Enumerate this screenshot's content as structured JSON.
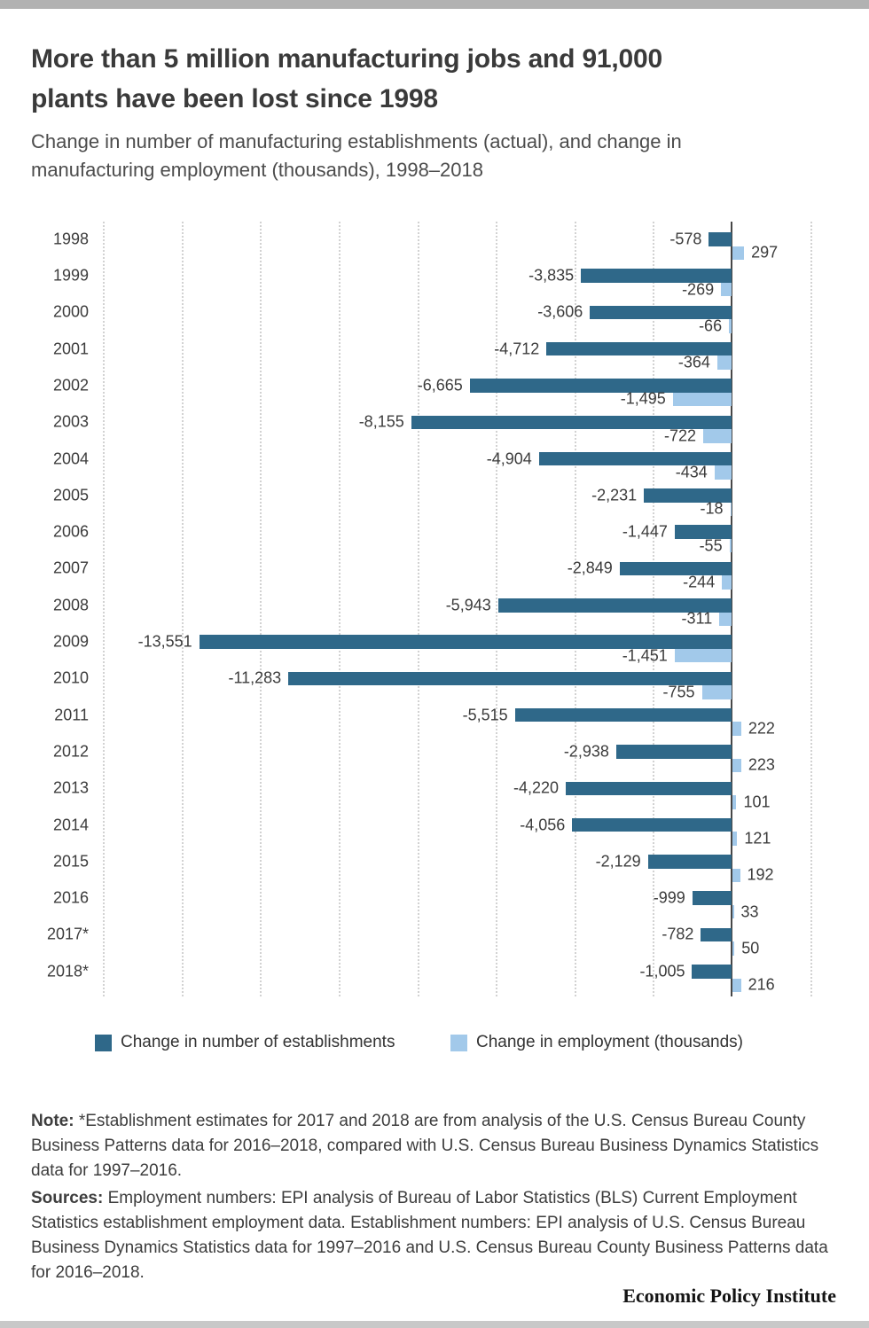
{
  "page": {
    "title": "More than 5 million manufacturing jobs and 91,000\nplants have been lost since 1998",
    "subtitle": "Change in number of manufacturing establishments (actual), and change in\nmanufacturing employment (thousands), 1998–2018",
    "note_label": "Note:",
    "note_text": "*Establishment estimates for 2017 and 2018 are from analysis of the U.S. Census Bureau County Business Patterns data for 2016–2018, compared with U.S. Census Bureau Business Dynamics Statistics data for 1997–2016.",
    "sources_label": "Sources:",
    "sources_text": "Employment numbers: EPI analysis of Bureau of Labor Statistics (BLS) Current Employment Statistics establishment employment data. Establishment numbers: EPI analysis of U.S. Census Bureau Business Dynamics Statistics data for 1997–2016 and U.S. Census Bureau County Business Patterns data for 2016–2018.",
    "brand": "Economic Policy Institute"
  },
  "colors": {
    "establishments_bar": "#2f6889",
    "employment_bar": "#a2c9ea",
    "gridline": "#d2d2d2",
    "zero_axis": "#474747",
    "top_strip": "#b2b2b2",
    "bottom_strip": "#c8c8c8"
  },
  "chart_data": {
    "type": "bar",
    "orientation": "horizontal",
    "title": "More than 5 million manufacturing jobs and 91,000 plants have been lost since 1998",
    "subtitle": "Change in number of manufacturing establishments (actual), and change in manufacturing employment (thousands), 1998–2018",
    "categories": [
      "1998",
      "1999",
      "2000",
      "2001",
      "2002",
      "2003",
      "2004",
      "2005",
      "2006",
      "2007",
      "2008",
      "2009",
      "2010",
      "2011",
      "2012",
      "2013",
      "2014",
      "2015",
      "2016",
      "2017*",
      "2018*"
    ],
    "series": [
      {
        "name": "Change in number of establishments",
        "color": "#2f6889",
        "values": [
          -578,
          -3835,
          -3606,
          -4712,
          -6665,
          -8155,
          -4904,
          -2231,
          -1447,
          -2849,
          -5943,
          -13551,
          -11283,
          -5515,
          -2938,
          -4220,
          -4056,
          -2129,
          -999,
          -782,
          -1005
        ]
      },
      {
        "name": "Change in employment (thousands)",
        "color": "#a2c9ea",
        "values": [
          297,
          -269,
          -66,
          -364,
          -1495,
          -722,
          -434,
          -18,
          -55,
          -244,
          -311,
          -1451,
          -755,
          222,
          223,
          101,
          121,
          192,
          33,
          50,
          216
        ]
      }
    ],
    "xlim": [
      -16000,
      2000
    ],
    "gridline_step": 2000,
    "grid": "dotted-vertical",
    "axis_tick_labels": "none",
    "value_labels": "at-bar-ends",
    "legend_position": "bottom"
  }
}
